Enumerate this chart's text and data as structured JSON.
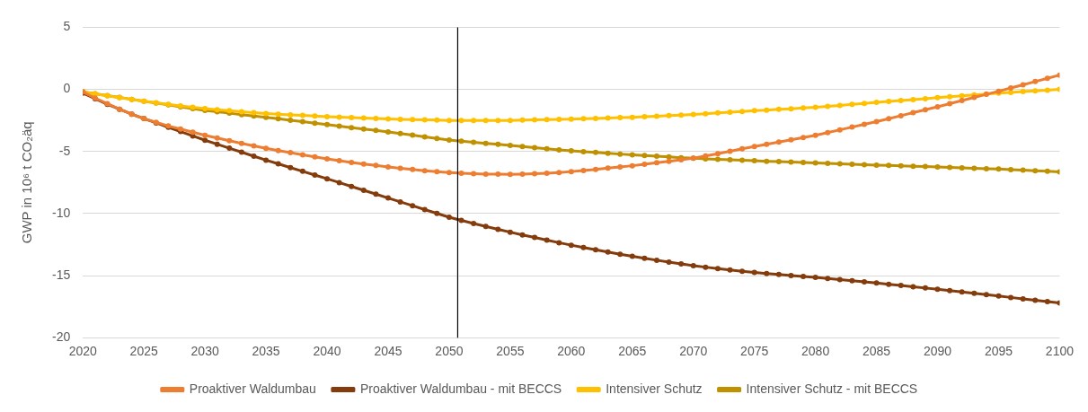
{
  "chart_data": {
    "type": "line",
    "ylabel": "GWP in 10⁶ t CO₂äq",
    "x": [
      2020,
      2021,
      2022,
      2023,
      2024,
      2025,
      2026,
      2027,
      2028,
      2029,
      2030,
      2031,
      2032,
      2033,
      2034,
      2035,
      2036,
      2037,
      2038,
      2039,
      2040,
      2041,
      2042,
      2043,
      2044,
      2045,
      2046,
      2047,
      2048,
      2049,
      2050,
      2051,
      2052,
      2053,
      2054,
      2055,
      2056,
      2057,
      2058,
      2059,
      2060,
      2061,
      2062,
      2063,
      2064,
      2065,
      2066,
      2067,
      2068,
      2069,
      2070,
      2071,
      2072,
      2073,
      2074,
      2075,
      2076,
      2077,
      2078,
      2079,
      2080,
      2081,
      2082,
      2083,
      2084,
      2085,
      2086,
      2087,
      2088,
      2089,
      2090,
      2091,
      2092,
      2093,
      2094,
      2095,
      2096,
      2097,
      2098,
      2099,
      2100
    ],
    "xlim": [
      2020,
      2100
    ],
    "xticks": [
      2020,
      2025,
      2030,
      2035,
      2040,
      2045,
      2050,
      2055,
      2060,
      2065,
      2070,
      2075,
      2080,
      2085,
      2090,
      2095,
      2100
    ],
    "ylim": [
      -20,
      5
    ],
    "yticks": [
      -20,
      -15,
      -10,
      -5,
      0,
      5
    ],
    "grid": "y",
    "legend": "bottom",
    "marker": "circle",
    "line_style": "solid",
    "ref_lines": [
      {
        "axis": "x",
        "value": 2050.7,
        "color": "#000000"
      }
    ],
    "series": [
      {
        "name": "Proaktiver Waldumbau",
        "color": "#ed7d31",
        "values": [
          -0.2,
          -0.7,
          -1.15,
          -1.6,
          -2.0,
          -2.35,
          -2.65,
          -2.95,
          -3.2,
          -3.45,
          -3.7,
          -3.92,
          -4.14,
          -4.35,
          -4.55,
          -4.75,
          -4.93,
          -5.1,
          -5.27,
          -5.44,
          -5.6,
          -5.74,
          -5.88,
          -6.01,
          -6.13,
          -6.25,
          -6.35,
          -6.45,
          -6.55,
          -6.63,
          -6.7,
          -6.75,
          -6.79,
          -6.82,
          -6.83,
          -6.84,
          -6.83,
          -6.8,
          -6.76,
          -6.7,
          -6.62,
          -6.53,
          -6.44,
          -6.34,
          -6.25,
          -6.15,
          -6.03,
          -5.91,
          -5.79,
          -5.67,
          -5.55,
          -5.37,
          -5.18,
          -4.98,
          -4.79,
          -4.6,
          -4.42,
          -4.24,
          -4.06,
          -3.88,
          -3.7,
          -3.48,
          -3.26,
          -3.04,
          -2.82,
          -2.6,
          -2.36,
          -2.12,
          -1.88,
          -1.64,
          -1.4,
          -1.15,
          -0.9,
          -0.65,
          -0.4,
          -0.15,
          0.11,
          0.37,
          0.63,
          0.89,
          1.15
        ]
      },
      {
        "name": "Proaktiver Waldumbau - mit BECCS",
        "color": "#843c0c",
        "values": [
          -0.3,
          -0.75,
          -1.2,
          -1.6,
          -2.0,
          -2.35,
          -2.7,
          -3.05,
          -3.4,
          -3.75,
          -4.1,
          -4.42,
          -4.74,
          -5.06,
          -5.38,
          -5.7,
          -6.0,
          -6.3,
          -6.6,
          -6.9,
          -7.2,
          -7.51,
          -7.82,
          -8.13,
          -8.44,
          -8.75,
          -9.06,
          -9.37,
          -9.68,
          -9.99,
          -10.3,
          -10.55,
          -10.8,
          -11.04,
          -11.27,
          -11.5,
          -11.72,
          -11.93,
          -12.14,
          -12.35,
          -12.55,
          -12.74,
          -12.92,
          -13.1,
          -13.28,
          -13.45,
          -13.61,
          -13.76,
          -13.91,
          -14.06,
          -14.2,
          -14.32,
          -14.43,
          -14.54,
          -14.65,
          -14.75,
          -14.83,
          -14.91,
          -14.99,
          -15.07,
          -15.15,
          -15.24,
          -15.33,
          -15.42,
          -15.51,
          -15.6,
          -15.7,
          -15.8,
          -15.9,
          -16.0,
          -16.1,
          -16.21,
          -16.32,
          -16.43,
          -16.54,
          -16.65,
          -16.76,
          -16.87,
          -16.98,
          -17.09,
          -17.2
        ]
      },
      {
        "name": "Intensiver Schutz",
        "color": "#ffc000",
        "values": [
          -0.2,
          -0.36,
          -0.52,
          -0.67,
          -0.81,
          -0.95,
          -1.08,
          -1.2,
          -1.33,
          -1.44,
          -1.55,
          -1.64,
          -1.72,
          -1.8,
          -1.88,
          -1.95,
          -2.0,
          -2.05,
          -2.1,
          -2.15,
          -2.2,
          -2.24,
          -2.28,
          -2.31,
          -2.35,
          -2.38,
          -2.41,
          -2.44,
          -2.46,
          -2.48,
          -2.5,
          -2.51,
          -2.51,
          -2.51,
          -2.5,
          -2.5,
          -2.48,
          -2.46,
          -2.44,
          -2.42,
          -2.4,
          -2.37,
          -2.34,
          -2.31,
          -2.28,
          -2.25,
          -2.2,
          -2.16,
          -2.11,
          -2.07,
          -2.02,
          -1.96,
          -1.9,
          -1.84,
          -1.78,
          -1.72,
          -1.67,
          -1.61,
          -1.56,
          -1.5,
          -1.45,
          -1.37,
          -1.29,
          -1.21,
          -1.13,
          -1.05,
          -0.97,
          -0.9,
          -0.82,
          -0.75,
          -0.67,
          -0.6,
          -0.52,
          -0.45,
          -0.37,
          -0.3,
          -0.24,
          -0.18,
          -0.12,
          -0.06,
          0
        ]
      },
      {
        "name": "Intensiver Schutz - mit BECCS",
        "color": "#bf9000",
        "values": [
          -0.2,
          -0.35,
          -0.5,
          -0.65,
          -0.8,
          -0.95,
          -1.1,
          -1.25,
          -1.4,
          -1.55,
          -1.7,
          -1.81,
          -1.92,
          -2.03,
          -2.14,
          -2.25,
          -2.37,
          -2.49,
          -2.6,
          -2.72,
          -2.84,
          -2.96,
          -3.08,
          -3.19,
          -3.31,
          -3.43,
          -3.56,
          -3.69,
          -3.82,
          -3.95,
          -4.08,
          -4.17,
          -4.26,
          -4.35,
          -4.43,
          -4.52,
          -4.61,
          -4.7,
          -4.78,
          -4.87,
          -4.95,
          -5.02,
          -5.08,
          -5.15,
          -5.21,
          -5.28,
          -5.33,
          -5.39,
          -5.44,
          -5.5,
          -5.55,
          -5.59,
          -5.63,
          -5.67,
          -5.71,
          -5.75,
          -5.79,
          -5.82,
          -5.86,
          -5.89,
          -5.93,
          -5.96,
          -6.0,
          -6.03,
          -6.07,
          -6.1,
          -6.13,
          -6.16,
          -6.19,
          -6.22,
          -6.25,
          -6.28,
          -6.32,
          -6.35,
          -6.39,
          -6.42,
          -6.47,
          -6.51,
          -6.56,
          -6.6,
          -6.65
        ]
      }
    ]
  }
}
